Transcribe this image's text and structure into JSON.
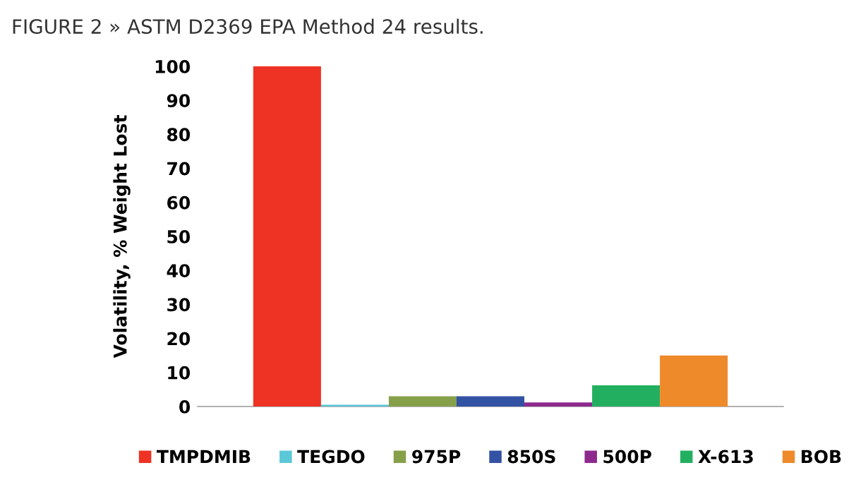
{
  "chart_data": {
    "type": "bar",
    "title": "FIGURE 2 » ASTM D2369 EPA Method 24 results.",
    "ylabel": "Volatility, % Weight Lost",
    "categories": [
      null
    ],
    "series": [
      {
        "name": "TMPDMIB",
        "color": "#ee3224",
        "values": [
          100
        ]
      },
      {
        "name": "TEGDO",
        "color": "#5bc8d8",
        "values": [
          0.5
        ]
      },
      {
        "name": "975P",
        "color": "#86a04a",
        "values": [
          3
        ]
      },
      {
        "name": "850S",
        "color": "#3452a4",
        "values": [
          3
        ]
      },
      {
        "name": "500P",
        "color": "#8e2a8e",
        "values": [
          1.2
        ]
      },
      {
        "name": "X-613",
        "color": "#22b060",
        "values": [
          6.2
        ]
      },
      {
        "name": "BOB",
        "color": "#ee8a2a",
        "values": [
          15
        ]
      }
    ],
    "ylim": [
      0,
      100
    ],
    "yticks": [
      0,
      10,
      20,
      30,
      40,
      50,
      60,
      70,
      80,
      90,
      100
    ],
    "grid": false,
    "legend": "bottom"
  }
}
